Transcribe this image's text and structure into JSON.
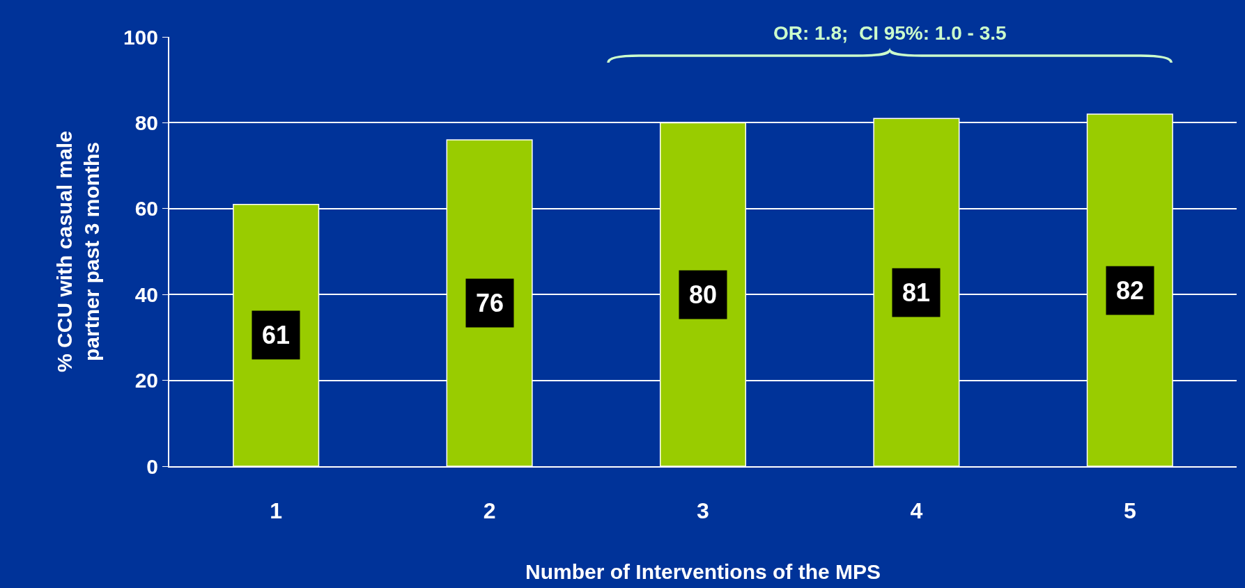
{
  "chart_data": {
    "type": "bar",
    "xlabel": "Number of Interventions of the MPS",
    "ylabel": "% CCU with casual male partner past 3 months",
    "categories": [
      "1",
      "2",
      "3",
      "4",
      "5"
    ],
    "values": [
      61,
      76,
      80,
      81,
      82
    ],
    "color": "#99cc00",
    "ylim": [
      0,
      100
    ],
    "yticks": [
      0,
      20,
      40,
      60,
      80,
      100
    ],
    "grid": "y",
    "data_labels": true,
    "annotations": [
      "OR: 1.8;  CI 95%: 1.0 - 3.5"
    ]
  }
}
